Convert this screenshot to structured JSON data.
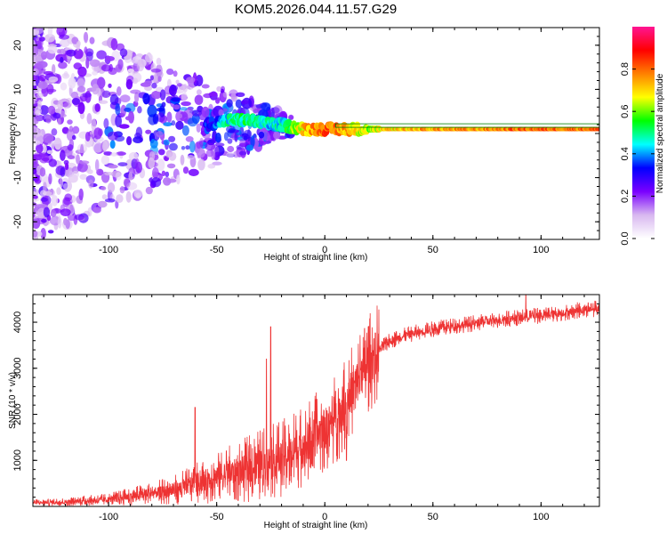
{
  "title": "KOM5.2026.044.11.57.G29",
  "chart_data": [
    {
      "type": "heatmap",
      "name": "spectrogram",
      "xlabel": "Height of straight line (km)",
      "ylabel": "Frequency (Hz)",
      "xlim": [
        -135,
        127
      ],
      "ylim": [
        -24,
        24
      ],
      "xticks": [
        -100,
        -50,
        0,
        50,
        100
      ],
      "yticks": [
        -20,
        -10,
        0,
        10,
        20
      ],
      "colorbar": {
        "label": "Normalized spectral amplitude",
        "range": [
          0,
          1
        ],
        "ticks": [
          "0.0",
          "0.2",
          "0.4",
          "0.6",
          "0.8"
        ],
        "tick_values": [
          0.0,
          0.2,
          0.4,
          0.6,
          0.8
        ],
        "colors": [
          "#ffffff",
          "#d8b8f0",
          "#7a00ff",
          "#0000ff",
          "#00ffff",
          "#00ff00",
          "#ffff00",
          "#ff8000",
          "#ff0000",
          "#ff1493"
        ]
      },
      "ridge": {
        "description_free_points_x": [
          -55,
          -45,
          -35,
          -25,
          -20,
          -10,
          0,
          10,
          20,
          30,
          50,
          70,
          90,
          110,
          127
        ],
        "freq_hz": [
          2,
          3,
          3,
          2,
          2,
          1,
          1,
          1,
          1,
          1,
          1,
          1,
          1,
          1,
          1
        ],
        "amplitude": [
          0.3,
          0.45,
          0.5,
          0.45,
          0.45,
          0.7,
          0.8,
          0.75,
          0.6,
          0.7,
          0.75,
          0.75,
          0.8,
          0.8,
          0.8
        ]
      }
    },
    {
      "type": "line",
      "name": "snr",
      "xlabel": "Height of straight line (km)",
      "ylabel": "SNR (10 * v/v)",
      "xlim": [
        -135,
        127
      ],
      "ylim": [
        0,
        4600
      ],
      "xticks": [
        -100,
        -50,
        0,
        50,
        100
      ],
      "yticks": [
        1000,
        2000,
        3000,
        4000
      ],
      "color": "#ee3333",
      "trend": {
        "x": [
          -135,
          -120,
          -100,
          -85,
          -70,
          -60,
          -50,
          -40,
          -30,
          -20,
          -10,
          0,
          5,
          10,
          15,
          20,
          25,
          30,
          40,
          50,
          60,
          70,
          80,
          90,
          100,
          110,
          120,
          127
        ],
        "y": [
          80,
          100,
          150,
          250,
          350,
          500,
          650,
          750,
          900,
          1050,
          1300,
          1700,
          1900,
          2300,
          2700,
          3100,
          3400,
          3600,
          3750,
          3850,
          3920,
          3980,
          4050,
          4100,
          4150,
          4200,
          4280,
          4300
        ]
      },
      "spikes": [
        {
          "x": -60,
          "y": 2150
        },
        {
          "x": -25,
          "y": 3900
        },
        {
          "x": -27,
          "y": 3200
        },
        {
          "x": 5,
          "y": 2500
        },
        {
          "x": 10,
          "y": 1000
        },
        {
          "x": 17,
          "y": 3150
        },
        {
          "x": 93,
          "y": 4600
        }
      ]
    }
  ]
}
